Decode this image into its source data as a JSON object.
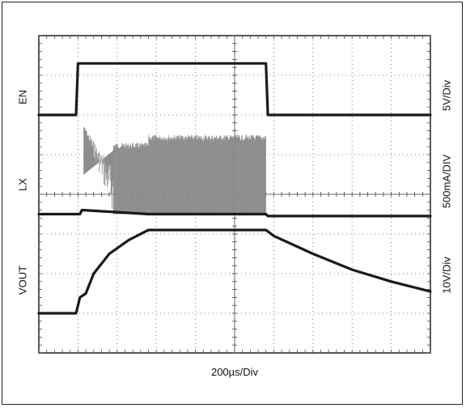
{
  "chart_data": {
    "type": "line",
    "title": "",
    "x_scale": "200µs/Div",
    "grid": true,
    "divisions": {
      "x": 10,
      "y": 8
    },
    "channels": [
      {
        "name": "EN",
        "scale": "5V/Div",
        "points": [
          [
            0,
            6.0
          ],
          [
            0.95,
            6.0
          ],
          [
            1.0,
            7.3
          ],
          [
            5.8,
            7.3
          ],
          [
            5.85,
            6.0
          ],
          [
            10,
            6.0
          ]
        ]
      },
      {
        "name": "LX",
        "scale": "500mA/DIV",
        "points": [
          [
            0,
            3.5
          ],
          [
            1.05,
            3.5
          ],
          [
            1.1,
            3.6
          ],
          [
            1.15,
            3.6
          ],
          [
            2.8,
            3.5
          ],
          [
            5.8,
            3.5
          ],
          [
            5.85,
            3.45
          ],
          [
            10,
            3.45
          ]
        ],
        "switching_noise": {
          "x_start": 1.15,
          "x_end": 5.8,
          "peak_level": 5.7
        }
      },
      {
        "name": "VOUT",
        "scale": "10V/Div",
        "points": [
          [
            0,
            1.0
          ],
          [
            0.95,
            1.0
          ],
          [
            1.05,
            1.4
          ],
          [
            1.2,
            1.5
          ],
          [
            1.4,
            2.0
          ],
          [
            1.8,
            2.5
          ],
          [
            2.3,
            2.85
          ],
          [
            2.8,
            3.1
          ],
          [
            5.8,
            3.1
          ],
          [
            6.0,
            2.95
          ],
          [
            7.0,
            2.5
          ],
          [
            8.0,
            2.1
          ],
          [
            9.0,
            1.8
          ],
          [
            10,
            1.55
          ]
        ]
      }
    ]
  },
  "labels": {
    "en": "EN",
    "lx": "LX",
    "vout": "VOUT",
    "en_scale": "5V/Div",
    "lx_scale": "500mA/DIV",
    "vout_scale": "10V/Div",
    "time_scale": "200µs/Div"
  },
  "colors": {
    "trace": "#1a1a1a",
    "switching": "#8c8c8c",
    "grid": "#666666"
  }
}
